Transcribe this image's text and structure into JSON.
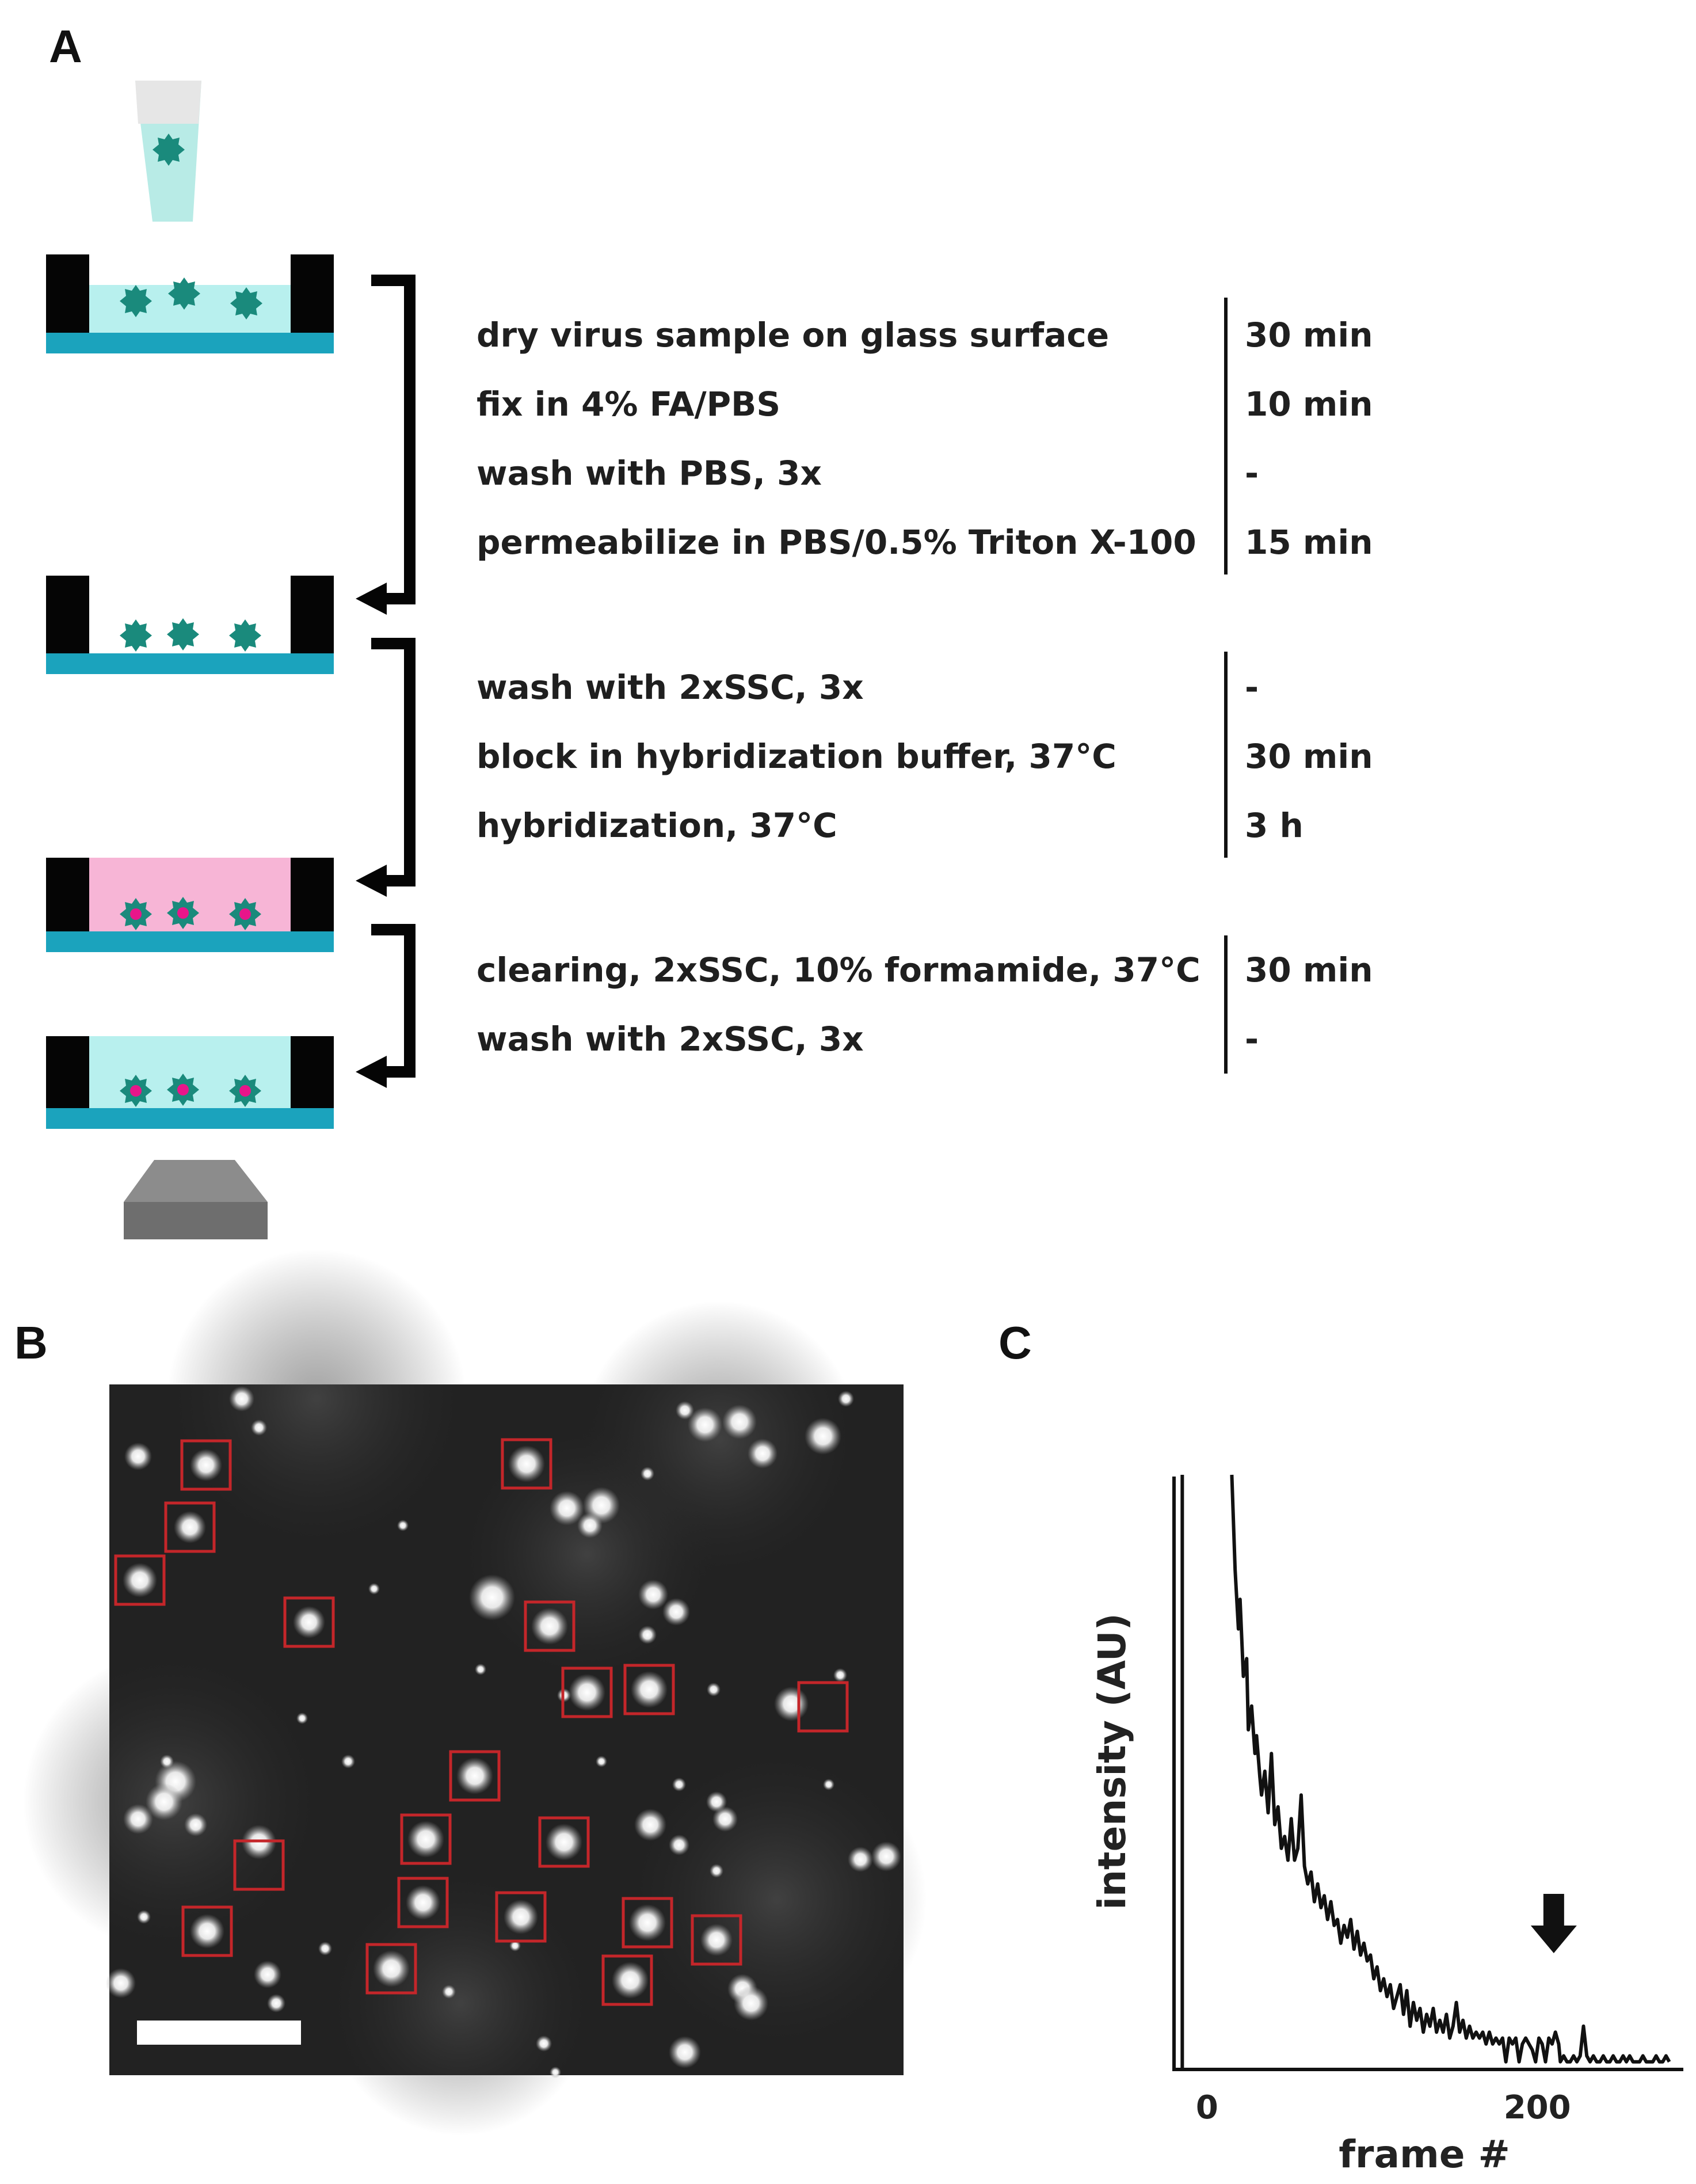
{
  "panels": {
    "a_label": "A",
    "b_label": "B",
    "c_label": "C"
  },
  "protocol": {
    "groups": [
      {
        "steps": [
          {
            "text": "dry virus sample on glass surface",
            "time": "30 min"
          },
          {
            "text": "fix in 4% FA/PBS",
            "time": "10 min"
          },
          {
            "text": "wash with PBS, 3x",
            "time": "-"
          },
          {
            "text": "permeabilize in PBS/0.5% Triton X-100",
            "time": "15 min"
          }
        ]
      },
      {
        "steps": [
          {
            "text": "wash with 2xSSC, 3x",
            "time": "-"
          },
          {
            "text": "block in hybridization buffer, 37°C",
            "time": "30 min"
          },
          {
            "text": "hybridization, 37°C",
            "time": "3 h"
          }
        ]
      },
      {
        "steps": [
          {
            "text": "clearing, 2xSSC, 10% formamide, 37°C",
            "time": "30 min"
          },
          {
            "text": "wash with 2xSSC, 3x",
            "time": "-"
          }
        ]
      }
    ]
  },
  "colors": {
    "virus": "#1a8a7c",
    "glass": "#1ba3bd",
    "liquid": "#b8f0ee",
    "hybridization_buffer": "#f7b5d6",
    "probe": "#e8158a",
    "wall": "#050505",
    "microscope": "#6e6e6e",
    "roi_box": "#c4262a"
  },
  "chart_data": {
    "type": "line",
    "xlabel": "frame #",
    "ylabel": "intensity (AU)",
    "xticks": [
      0,
      200
    ],
    "xlim": [
      -20,
      285
    ],
    "ylim": [
      0,
      100
    ],
    "annotation": "arrow at frame ~210 marking single-step photobleaching",
    "arrow_x": 210,
    "series": [
      {
        "points": [
          [
            -15,
            100
          ],
          [
            -15,
            0
          ],
          [
            15,
            100
          ],
          [
            17,
            84
          ],
          [
            19,
            74
          ],
          [
            20,
            79
          ],
          [
            22,
            66
          ],
          [
            24,
            69
          ],
          [
            25,
            57
          ],
          [
            27,
            61
          ],
          [
            29,
            53
          ],
          [
            30,
            56
          ],
          [
            32,
            49
          ],
          [
            33,
            46
          ],
          [
            35,
            50
          ],
          [
            37,
            43
          ],
          [
            39,
            53
          ],
          [
            41,
            41
          ],
          [
            43,
            44
          ],
          [
            45,
            37
          ],
          [
            47,
            39
          ],
          [
            49,
            35
          ],
          [
            51,
            42
          ],
          [
            53,
            35
          ],
          [
            55,
            37
          ],
          [
            57,
            46
          ],
          [
            59,
            34
          ],
          [
            61,
            31
          ],
          [
            63,
            33
          ],
          [
            65,
            28
          ],
          [
            67,
            31
          ],
          [
            69,
            27
          ],
          [
            71,
            29
          ],
          [
            73,
            25
          ],
          [
            75,
            28
          ],
          [
            77,
            24
          ],
          [
            79,
            25
          ],
          [
            81,
            21
          ],
          [
            83,
            24
          ],
          [
            85,
            22
          ],
          [
            87,
            25
          ],
          [
            89,
            20
          ],
          [
            91,
            23
          ],
          [
            93,
            19
          ],
          [
            95,
            21
          ],
          [
            97,
            18
          ],
          [
            99,
            19
          ],
          [
            101,
            15
          ],
          [
            103,
            17
          ],
          [
            105,
            13
          ],
          [
            107,
            15
          ],
          [
            109,
            12
          ],
          [
            111,
            14
          ],
          [
            113,
            10
          ],
          [
            115,
            12
          ],
          [
            117,
            14
          ],
          [
            119,
            9
          ],
          [
            121,
            13
          ],
          [
            123,
            7
          ],
          [
            125,
            11
          ],
          [
            127,
            8
          ],
          [
            129,
            10
          ],
          [
            131,
            6
          ],
          [
            133,
            9
          ],
          [
            135,
            7
          ],
          [
            137,
            10
          ],
          [
            139,
            6
          ],
          [
            141,
            8
          ],
          [
            143,
            6
          ],
          [
            145,
            9
          ],
          [
            147,
            5
          ],
          [
            149,
            7
          ],
          [
            151,
            11
          ],
          [
            153,
            6
          ],
          [
            155,
            8
          ],
          [
            157,
            5
          ],
          [
            159,
            7
          ],
          [
            161,
            5
          ],
          [
            163,
            6
          ],
          [
            165,
            5
          ],
          [
            167,
            6
          ],
          [
            169,
            4
          ],
          [
            171,
            6
          ],
          [
            173,
            4
          ],
          [
            175,
            5
          ],
          [
            177,
            4
          ],
          [
            179,
            5
          ],
          [
            181,
            1
          ],
          [
            183,
            5
          ],
          [
            185,
            4
          ],
          [
            187,
            5
          ],
          [
            189,
            1
          ],
          [
            191,
            4
          ],
          [
            193,
            5
          ],
          [
            195,
            4
          ],
          [
            197,
            3
          ],
          [
            199,
            1
          ],
          [
            201,
            5
          ],
          [
            203,
            4
          ],
          [
            205,
            1
          ],
          [
            207,
            5
          ],
          [
            209,
            4
          ],
          [
            211,
            6
          ],
          [
            213,
            4
          ],
          [
            214,
            1
          ],
          [
            216,
            2
          ],
          [
            218,
            1
          ],
          [
            220,
            1
          ],
          [
            222,
            2
          ],
          [
            224,
            1
          ],
          [
            226,
            2
          ],
          [
            228,
            7
          ],
          [
            230,
            2
          ],
          [
            232,
            1
          ],
          [
            234,
            2
          ],
          [
            236,
            1
          ],
          [
            238,
            1
          ],
          [
            240,
            2
          ],
          [
            242,
            1
          ],
          [
            244,
            1
          ],
          [
            246,
            2
          ],
          [
            248,
            1
          ],
          [
            250,
            1
          ],
          [
            252,
            2
          ],
          [
            254,
            1
          ],
          [
            256,
            2
          ],
          [
            258,
            1
          ],
          [
            260,
            1
          ],
          [
            262,
            1
          ],
          [
            264,
            2
          ],
          [
            266,
            1
          ],
          [
            268,
            1
          ],
          [
            270,
            1
          ],
          [
            272,
            2
          ],
          [
            274,
            1
          ],
          [
            276,
            1
          ],
          [
            278,
            2
          ],
          [
            280,
            1
          ]
        ]
      }
    ]
  }
}
